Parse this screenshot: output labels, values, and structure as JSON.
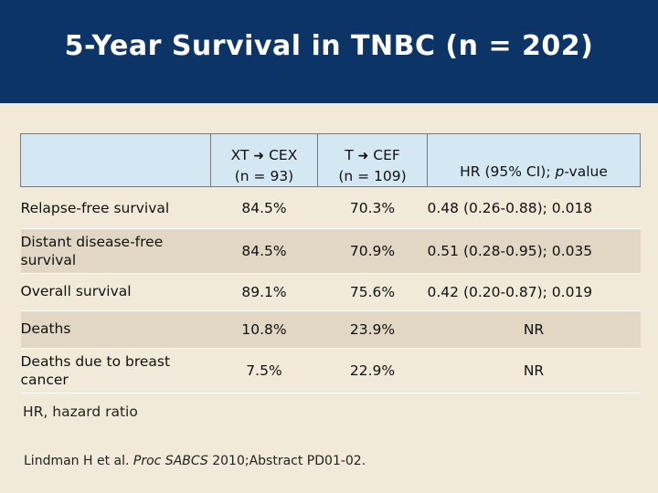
{
  "slide": {
    "title": "5-Year Survival in TNBC (n = 202)"
  },
  "table": {
    "headers": {
      "col1_line1_left": "XT",
      "col1_line1_right": "CEX",
      "col1_line2": "(n = 93)",
      "col2_line1_left": "T",
      "col2_line1_right": "CEF",
      "col2_line2": "(n = 109)",
      "col3_prefix": "HR (95% CI); ",
      "col3_italic": "p",
      "col3_suffix": "-value",
      "arrow_icon": "right-arrow"
    },
    "rows": [
      {
        "label": "Relapse-free survival",
        "xt": "84.5%",
        "t": "70.3%",
        "hr": "0.48 (0.26-0.88); 0.018"
      },
      {
        "label": "Distant disease-free survival",
        "xt": "84.5%",
        "t": "70.9%",
        "hr": "0.51 (0.28-0.95); 0.035"
      },
      {
        "label": "Overall survival",
        "xt": "89.1%",
        "t": "75.6%",
        "hr": "0.42 (0.20-0.87); 0.019"
      },
      {
        "label": "Deaths",
        "xt": "10.8%",
        "t": "23.9%",
        "hr": "NR"
      },
      {
        "label": "Deaths due to breast cancer",
        "xt": "7.5%",
        "t": "22.9%",
        "hr": "NR"
      }
    ]
  },
  "footnote": "HR, hazard ratio",
  "citation": {
    "authors": "Lindman H et al. ",
    "journal": "Proc SABCS",
    "rest": " 2010;Abstract PD01-02."
  },
  "colors": {
    "title_bar": "#0c3466",
    "background": "#f2ead9",
    "header_fill": "#d4e8f3",
    "row_shade": "#e1d7c4"
  }
}
